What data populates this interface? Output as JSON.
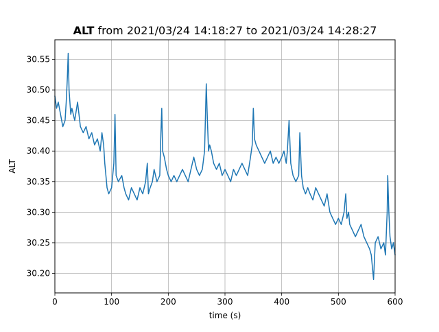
{
  "chart_data": {
    "type": "line",
    "title_bold": "ALT",
    "title_rest": " from 2021/03/24 14:18:27 to 2021/03/24 14:28:27",
    "xlabel": "time (s)",
    "ylabel": "ALT",
    "xlim": [
      0,
      600
    ],
    "ylim": [
      30.168,
      30.582
    ],
    "grid": true,
    "x_ticks": [
      0,
      100,
      200,
      300,
      400,
      500,
      600
    ],
    "x_tick_labels": [
      "0",
      "100",
      "200",
      "300",
      "400",
      "500",
      "600"
    ],
    "y_ticks": [
      30.2,
      30.25,
      30.3,
      30.35,
      30.4,
      30.45,
      30.5,
      30.55
    ],
    "y_tick_labels": [
      "30.20",
      "30.25",
      "30.30",
      "30.35",
      "30.40",
      "30.45",
      "30.50",
      "30.55"
    ],
    "color": "#1f77b4",
    "series": [
      {
        "x": [
          0,
          3,
          6,
          10,
          14,
          18,
          20,
          22,
          23.5,
          25,
          28,
          30,
          35,
          40,
          45,
          50,
          55,
          60,
          65,
          70,
          75,
          80,
          83,
          86,
          88,
          90,
          92,
          95,
          100,
          104,
          106,
          108,
          112,
          118,
          122,
          125,
          130,
          135,
          140,
          145,
          150,
          155,
          160,
          163,
          165,
          168,
          172,
          175,
          180,
          185,
          187,
          188.5,
          190,
          193,
          197,
          200,
          205,
          210,
          215,
          220,
          225,
          230,
          235,
          240,
          245,
          250,
          255,
          260,
          264,
          267,
          269,
          271,
          273,
          276,
          280,
          285,
          290,
          295,
          300,
          305,
          310,
          315,
          320,
          325,
          330,
          335,
          340,
          345,
          348,
          350,
          352,
          355,
          360,
          365,
          370,
          375,
          380,
          385,
          390,
          395,
          400,
          404,
          408,
          410,
          413,
          416,
          420,
          425,
          430,
          432,
          435,
          438,
          442,
          446,
          450,
          455,
          460,
          465,
          470,
          475,
          480,
          485,
          490,
          495,
          500,
          505,
          510,
          513,
          515,
          518,
          520,
          525,
          530,
          535,
          540,
          545,
          550,
          555,
          558,
          560,
          562,
          565,
          570,
          575,
          580,
          583,
          586,
          587,
          589,
          591,
          594,
          597,
          600
        ],
        "y": [
          30.49,
          30.47,
          30.48,
          30.46,
          30.44,
          30.45,
          30.48,
          30.52,
          30.56,
          30.5,
          30.46,
          30.47,
          30.45,
          30.48,
          30.44,
          30.43,
          30.44,
          30.42,
          30.43,
          30.41,
          30.42,
          30.4,
          30.43,
          30.41,
          30.38,
          30.36,
          30.34,
          30.33,
          30.34,
          30.38,
          30.46,
          30.36,
          30.35,
          30.36,
          30.34,
          30.33,
          30.32,
          30.34,
          30.33,
          30.32,
          30.34,
          30.33,
          30.35,
          30.38,
          30.33,
          30.34,
          30.35,
          30.37,
          30.35,
          30.36,
          30.43,
          30.47,
          30.4,
          30.39,
          30.37,
          30.36,
          30.35,
          30.36,
          30.35,
          30.36,
          30.37,
          30.36,
          30.35,
          30.37,
          30.39,
          30.37,
          30.36,
          30.37,
          30.4,
          30.51,
          30.45,
          30.4,
          30.41,
          30.4,
          30.38,
          30.37,
          30.38,
          30.36,
          30.37,
          30.36,
          30.35,
          30.37,
          30.36,
          30.37,
          30.38,
          30.37,
          30.36,
          30.39,
          30.41,
          30.47,
          30.42,
          30.41,
          30.4,
          30.39,
          30.38,
          30.39,
          30.4,
          30.38,
          30.39,
          30.38,
          30.39,
          30.4,
          30.38,
          30.4,
          30.45,
          30.38,
          30.36,
          30.35,
          30.36,
          30.43,
          30.36,
          30.34,
          30.33,
          30.34,
          30.33,
          30.32,
          30.34,
          30.33,
          30.32,
          30.31,
          30.33,
          30.3,
          30.29,
          30.28,
          30.29,
          30.28,
          30.3,
          30.33,
          30.29,
          30.3,
          30.28,
          30.27,
          30.26,
          30.27,
          30.28,
          30.26,
          30.25,
          30.24,
          30.23,
          30.21,
          30.19,
          30.25,
          30.26,
          30.24,
          30.25,
          30.23,
          30.3,
          30.36,
          30.3,
          30.26,
          30.24,
          30.25,
          30.23
        ]
      }
    ]
  }
}
